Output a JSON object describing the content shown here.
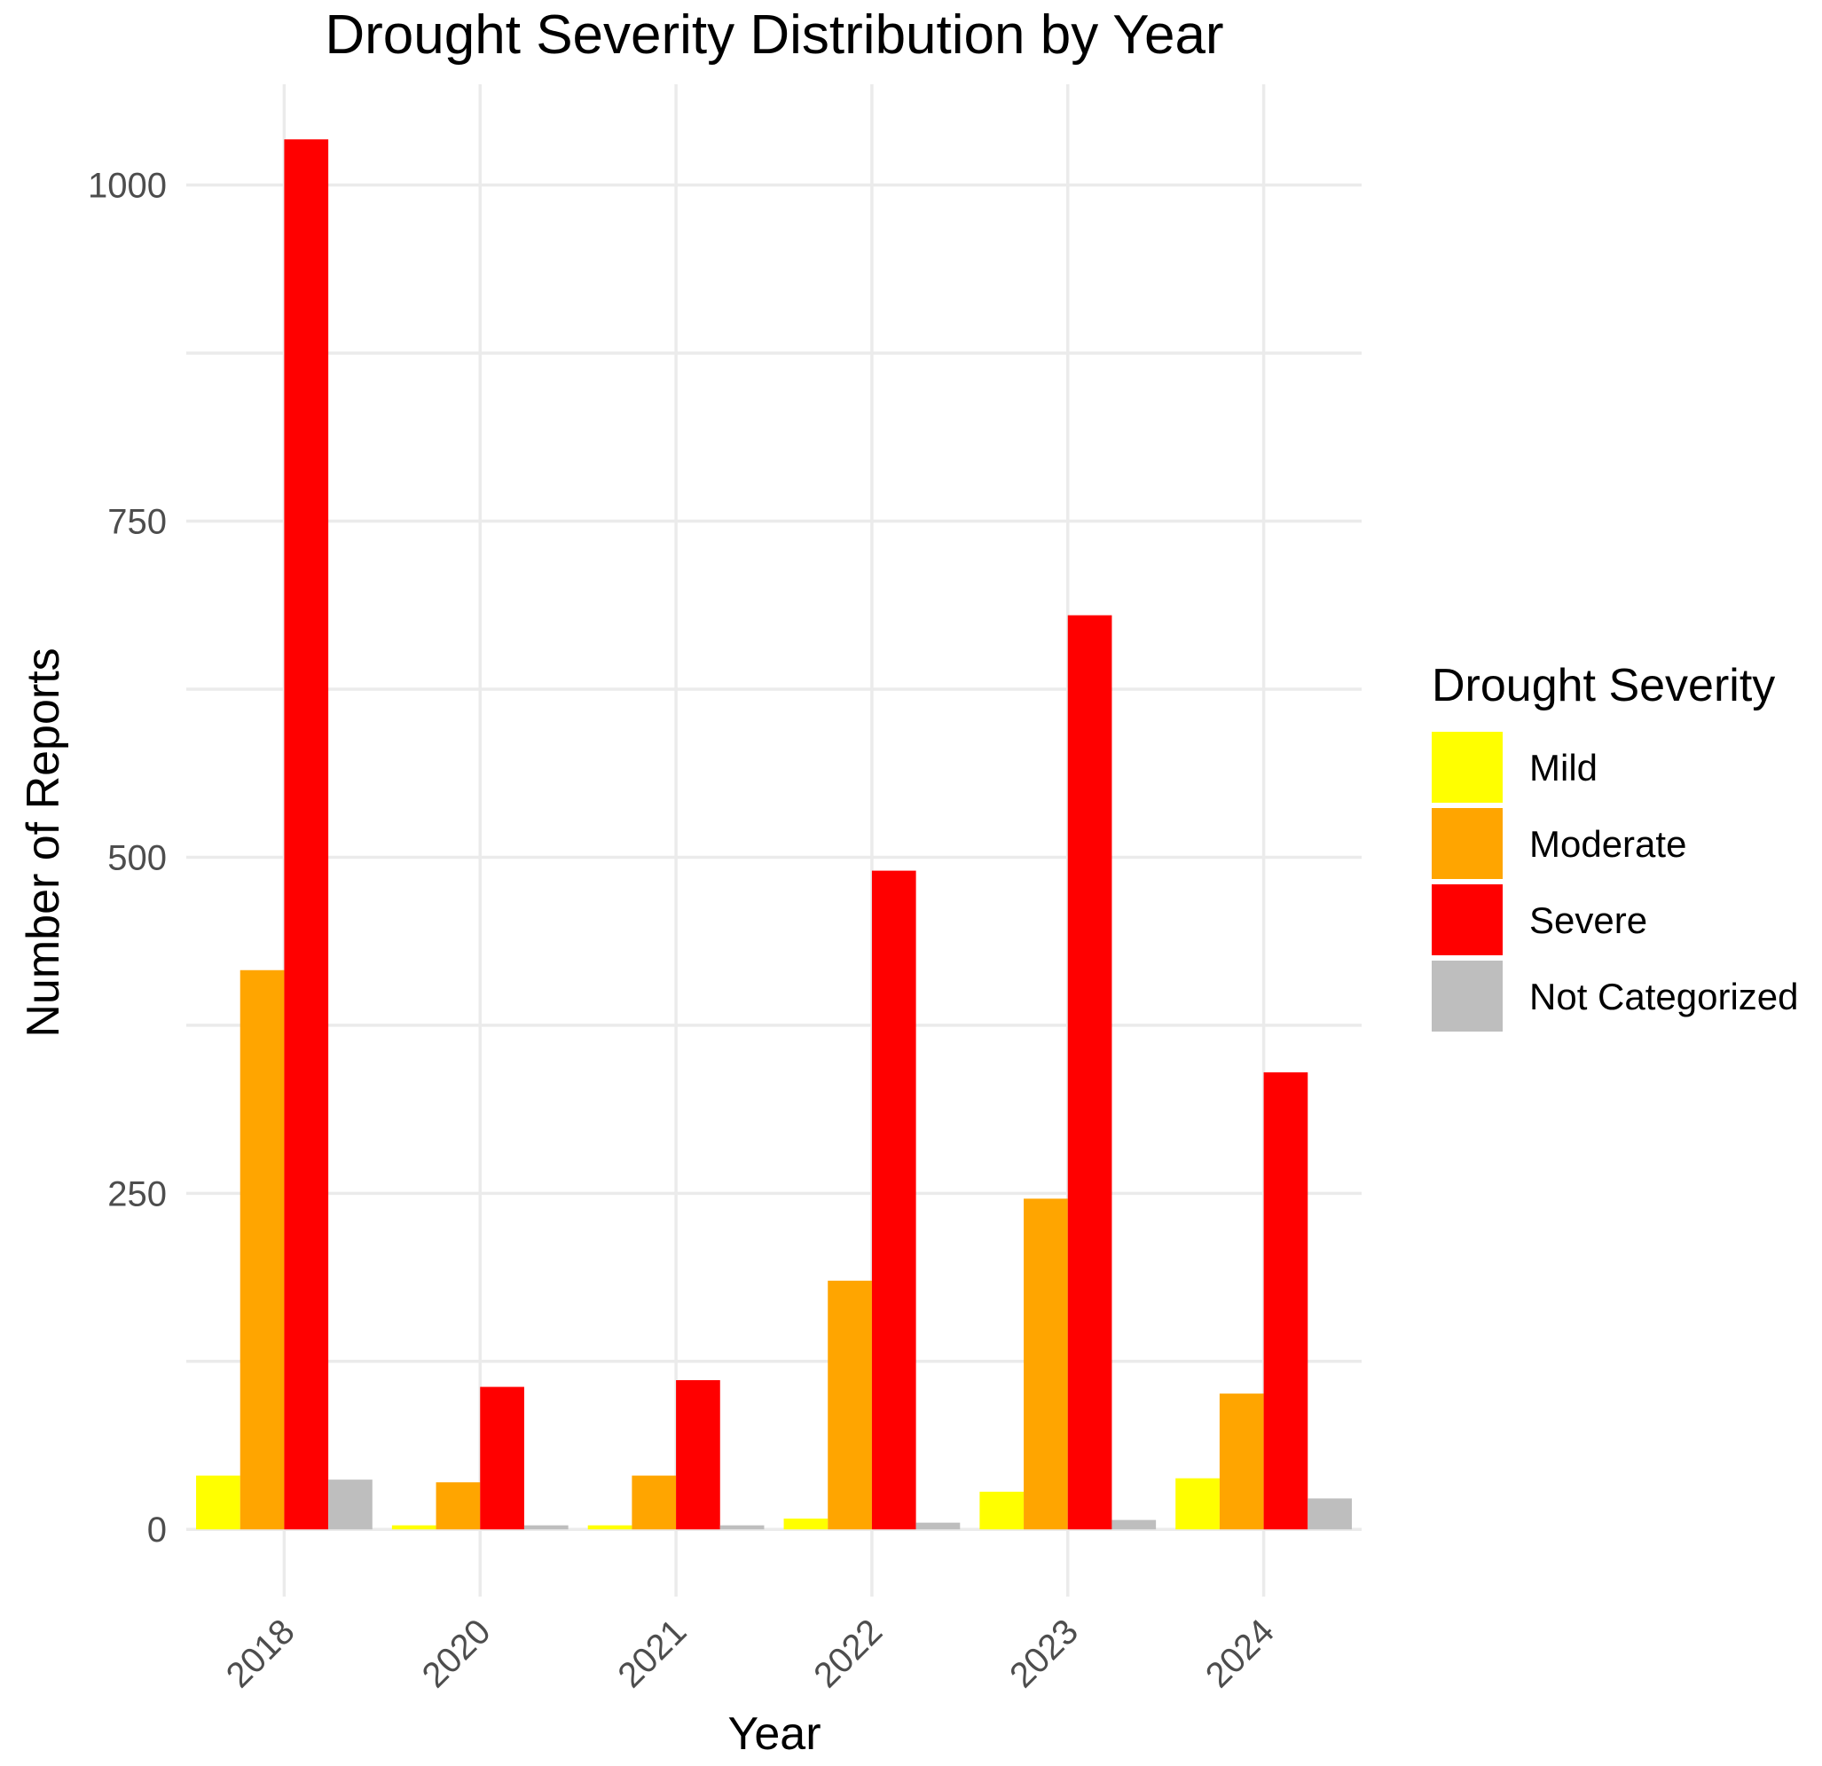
{
  "chart_data": {
    "type": "bar",
    "title": "Drought Severity Distribution by Year",
    "xlabel": "Year",
    "ylabel": "Number of Reports",
    "categories": [
      "2018",
      "2020",
      "2021",
      "2022",
      "2023",
      "2024"
    ],
    "series": [
      {
        "name": "Mild",
        "color": "#FFFF00",
        "values": [
          40,
          3,
          3,
          8,
          28,
          38
        ]
      },
      {
        "name": "Moderate",
        "color": "#FFA500",
        "values": [
          416,
          35,
          40,
          185,
          246,
          101
        ]
      },
      {
        "name": "Severe",
        "color": "#FF0000",
        "values": [
          1034,
          106,
          111,
          490,
          680,
          340
        ]
      },
      {
        "name": "Not Categorized",
        "color": "#BEBEBE",
        "values": [
          37,
          3,
          3,
          5,
          7,
          23
        ]
      }
    ],
    "ylim": [
      -50,
      1075
    ],
    "yticks": [
      0,
      250,
      500,
      750,
      1000
    ],
    "grid": true,
    "legend": {
      "title": "Drought Severity",
      "position": "right"
    }
  }
}
